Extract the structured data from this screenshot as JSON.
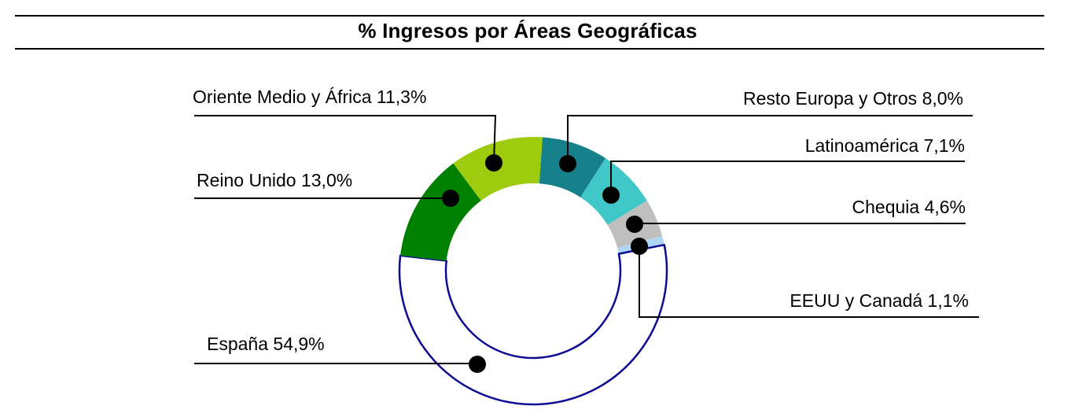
{
  "title": "% Ingresos por Áreas Geográficas",
  "chart_data": {
    "type": "pie",
    "variant": "donut",
    "title": "% Ingresos por Áreas Geográficas",
    "unit": "%",
    "decimal_separator": ",",
    "rotation_deg_cw_from_top": 4,
    "direction": "clockwise",
    "legend_position": "callout-labels",
    "grid": false,
    "slices": [
      {
        "name": "Resto Europa y Otros",
        "value": 8.0,
        "label_text": "Resto Europa y Otros 8,0%",
        "color": "#17818B"
      },
      {
        "name": "Latinoamérica",
        "value": 7.1,
        "label_text": "Latinoamérica 7,1%",
        "color": "#40C8C8"
      },
      {
        "name": "Chequia",
        "value": 4.6,
        "label_text": "Chequia 4,6%",
        "color": "#BFBFBF"
      },
      {
        "name": "EEUU y Canadá",
        "value": 1.1,
        "label_text": "EEUU y Canadá 1,1%",
        "color": "#AFD6F5"
      },
      {
        "name": "España",
        "value": 54.9,
        "label_text": "España 54,9%",
        "color": "#FFFFFF",
        "outline": "#0D0B91"
      },
      {
        "name": "Reino Unido",
        "value": 13.0,
        "label_text": "Reino Unido 13,0%",
        "color": "#008000"
      },
      {
        "name": "Oriente Medio y África",
        "value": 11.3,
        "label_text": "Oriente Medio y África 11,3%",
        "color": "#9DCB0D"
      }
    ],
    "colors": {
      "leader_line": "#000000",
      "callout_dot": "#000000",
      "espana_outline": "#0D0B91",
      "title_rule": "#000000"
    }
  }
}
